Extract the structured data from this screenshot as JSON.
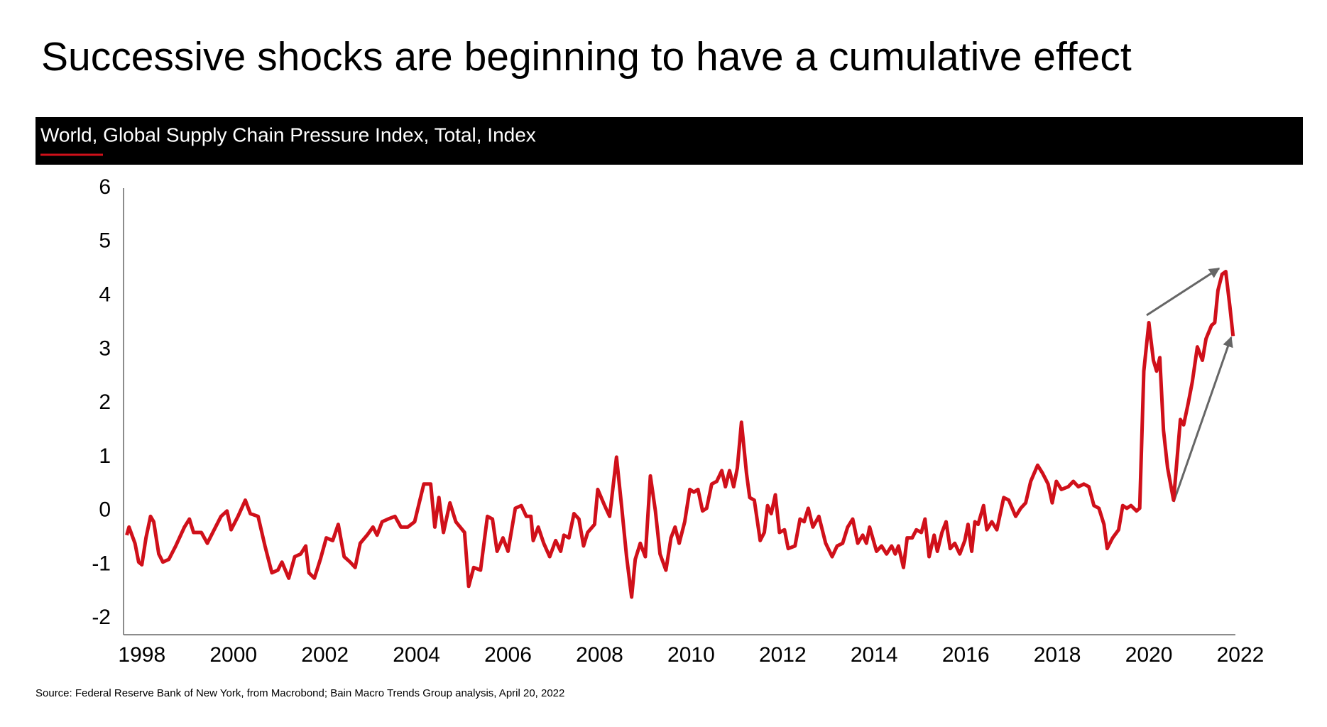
{
  "chart_data": {
    "type": "line",
    "title": "Successive shocks are beginning to have a cumulative effect",
    "source": "Source: Federal Reserve Bank of New York, from Macrobond; Bain Macro Trends Group analysis, April 20, 2022",
    "x": [
      1997.67,
      1997.72,
      1997.85,
      1997.93,
      1998.0,
      1998.09,
      1998.19,
      1998.26,
      1998.37,
      1998.46,
      1998.59,
      1998.74,
      1998.93,
      1999.04,
      1999.13,
      1999.3,
      1999.43,
      1999.58,
      1999.73,
      1999.86,
      1999.95,
      2000.1,
      2000.26,
      2000.37,
      2000.54,
      2000.69,
      2000.84,
      2000.97,
      2001.06,
      2001.21,
      2001.34,
      2001.47,
      2001.58,
      2001.65,
      2001.77,
      2001.9,
      2002.03,
      2002.17,
      2002.29,
      2002.42,
      2002.55,
      2002.66,
      2002.77,
      2002.92,
      2003.05,
      2003.14,
      2003.25,
      2003.38,
      2003.53,
      2003.66,
      2003.81,
      2003.96,
      2004.16,
      2004.31,
      2004.4,
      2004.49,
      2004.59,
      2004.73,
      2004.86,
      2005.05,
      2005.14,
      2005.25,
      2005.4,
      2005.55,
      2005.66,
      2005.76,
      2005.89,
      2006.0,
      2006.16,
      2006.29,
      2006.4,
      2006.5,
      2006.55,
      2006.66,
      2006.78,
      2006.91,
      2007.04,
      2007.15,
      2007.22,
      2007.33,
      2007.44,
      2007.55,
      2007.65,
      2007.74,
      2007.89,
      2007.96,
      2008.11,
      2008.22,
      2008.37,
      2008.48,
      2008.59,
      2008.7,
      2008.78,
      2008.89,
      2009.0,
      2009.11,
      2009.22,
      2009.32,
      2009.45,
      2009.56,
      2009.65,
      2009.74,
      2009.86,
      2009.97,
      2010.06,
      2010.15,
      2010.25,
      2010.34,
      2010.45,
      2010.56,
      2010.67,
      2010.75,
      2010.84,
      2010.93,
      2011.01,
      2011.1,
      2011.21,
      2011.28,
      2011.38,
      2011.51,
      2011.6,
      2011.67,
      2011.75,
      2011.84,
      2011.93,
      2012.04,
      2012.12,
      2012.27,
      2012.38,
      2012.47,
      2012.56,
      2012.66,
      2012.79,
      2012.94,
      2013.08,
      2013.19,
      2013.31,
      2013.42,
      2013.53,
      2013.64,
      2013.75,
      2013.83,
      2013.9,
      2014.05,
      2014.16,
      2014.27,
      2014.38,
      2014.46,
      2014.53,
      2014.64,
      2014.72,
      2014.83,
      2014.92,
      2015.03,
      2015.11,
      2015.2,
      2015.31,
      2015.38,
      2015.48,
      2015.57,
      2015.66,
      2015.76,
      2015.87,
      2015.98,
      2016.05,
      2016.13,
      2016.2,
      2016.27,
      2016.39,
      2016.46,
      2016.57,
      2016.68,
      2016.83,
      2016.94,
      2017.09,
      2017.2,
      2017.31,
      2017.42,
      2017.57,
      2017.68,
      2017.8,
      2017.89,
      2017.98,
      2018.09,
      2018.24,
      2018.35,
      2018.46,
      2018.58,
      2018.69,
      2018.8,
      2018.91,
      2019.02,
      2019.09,
      2019.21,
      2019.34,
      2019.43,
      2019.52,
      2019.61,
      2019.73,
      2019.8,
      2019.89,
      2020.0,
      2020.1,
      2020.17,
      2020.24,
      2020.32,
      2020.41,
      2020.54,
      2020.61,
      2020.69,
      2020.76,
      2020.86,
      2020.95,
      2021.06,
      2021.17,
      2021.25,
      2021.37,
      2021.44,
      2021.51,
      2021.6,
      2021.68,
      2021.77,
      2021.84
    ],
    "series": [
      {
        "name": "World, Global Supply Chain Pressure Index, Total, Index",
        "color": "#d0101a",
        "values": [
          -0.45,
          -0.3,
          -0.6,
          -0.95,
          -1.0,
          -0.5,
          -0.1,
          -0.2,
          -0.8,
          -0.95,
          -0.9,
          -0.65,
          -0.3,
          -0.15,
          -0.4,
          -0.4,
          -0.6,
          -0.35,
          -0.1,
          0.0,
          -0.35,
          -0.1,
          0.2,
          -0.05,
          -0.1,
          -0.65,
          -1.15,
          -1.1,
          -0.95,
          -1.25,
          -0.85,
          -0.8,
          -0.65,
          -1.15,
          -1.25,
          -0.9,
          -0.5,
          -0.55,
          -0.25,
          -0.85,
          -0.95,
          -1.05,
          -0.6,
          -0.45,
          -0.3,
          -0.45,
          -0.2,
          -0.15,
          -0.1,
          -0.3,
          -0.3,
          -0.2,
          0.5,
          0.5,
          -0.3,
          0.25,
          -0.4,
          0.15,
          -0.2,
          -0.4,
          -1.4,
          -1.05,
          -1.1,
          -0.1,
          -0.15,
          -0.75,
          -0.5,
          -0.75,
          0.05,
          0.1,
          -0.1,
          -0.1,
          -0.55,
          -0.3,
          -0.6,
          -0.85,
          -0.55,
          -0.75,
          -0.45,
          -0.5,
          -0.05,
          -0.15,
          -0.65,
          -0.4,
          -0.25,
          0.4,
          0.1,
          -0.1,
          1.0,
          0.1,
          -0.85,
          -1.6,
          -0.9,
          -0.6,
          -0.85,
          0.65,
          0.0,
          -0.8,
          -1.1,
          -0.5,
          -0.3,
          -0.6,
          -0.2,
          0.4,
          0.35,
          0.4,
          0.0,
          0.05,
          0.5,
          0.55,
          0.75,
          0.45,
          0.75,
          0.45,
          0.8,
          1.65,
          0.7,
          0.25,
          0.2,
          -0.55,
          -0.4,
          0.1,
          -0.05,
          0.3,
          -0.4,
          -0.35,
          -0.7,
          -0.65,
          -0.15,
          -0.2,
          0.05,
          -0.3,
          -0.1,
          -0.6,
          -0.85,
          -0.65,
          -0.6,
          -0.3,
          -0.15,
          -0.6,
          -0.45,
          -0.6,
          -0.3,
          -0.75,
          -0.65,
          -0.8,
          -0.65,
          -0.8,
          -0.65,
          -1.05,
          -0.5,
          -0.5,
          -0.35,
          -0.4,
          -0.15,
          -0.85,
          -0.45,
          -0.75,
          -0.4,
          -0.2,
          -0.7,
          -0.6,
          -0.8,
          -0.55,
          -0.25,
          -0.75,
          -0.2,
          -0.25,
          0.1,
          -0.35,
          -0.2,
          -0.35,
          0.25,
          0.2,
          -0.1,
          0.05,
          0.15,
          0.55,
          0.85,
          0.7,
          0.5,
          0.15,
          0.55,
          0.4,
          0.45,
          0.55,
          0.45,
          0.5,
          0.45,
          0.1,
          0.05,
          -0.25,
          -0.7,
          -0.5,
          -0.35,
          0.1,
          0.05,
          0.1,
          0.0,
          0.05,
          2.6,
          3.5,
          2.8,
          2.6,
          2.85,
          1.5,
          0.8,
          0.2,
          0.9,
          1.7,
          1.6,
          2.0,
          2.4,
          3.05,
          2.8,
          3.2,
          3.45,
          3.5,
          4.1,
          4.4,
          4.45,
          3.8,
          3.25
        ]
      }
    ],
    "xlim": [
      1997.6,
      2022
    ],
    "xticks": [
      1998,
      2000,
      2002,
      2004,
      2006,
      2008,
      2010,
      2012,
      2014,
      2016,
      2018,
      2020,
      2022
    ],
    "ylim": [
      -2.3,
      6
    ],
    "yticks": [
      -2,
      -1,
      0,
      1,
      2,
      3,
      4,
      5,
      6
    ]
  }
}
